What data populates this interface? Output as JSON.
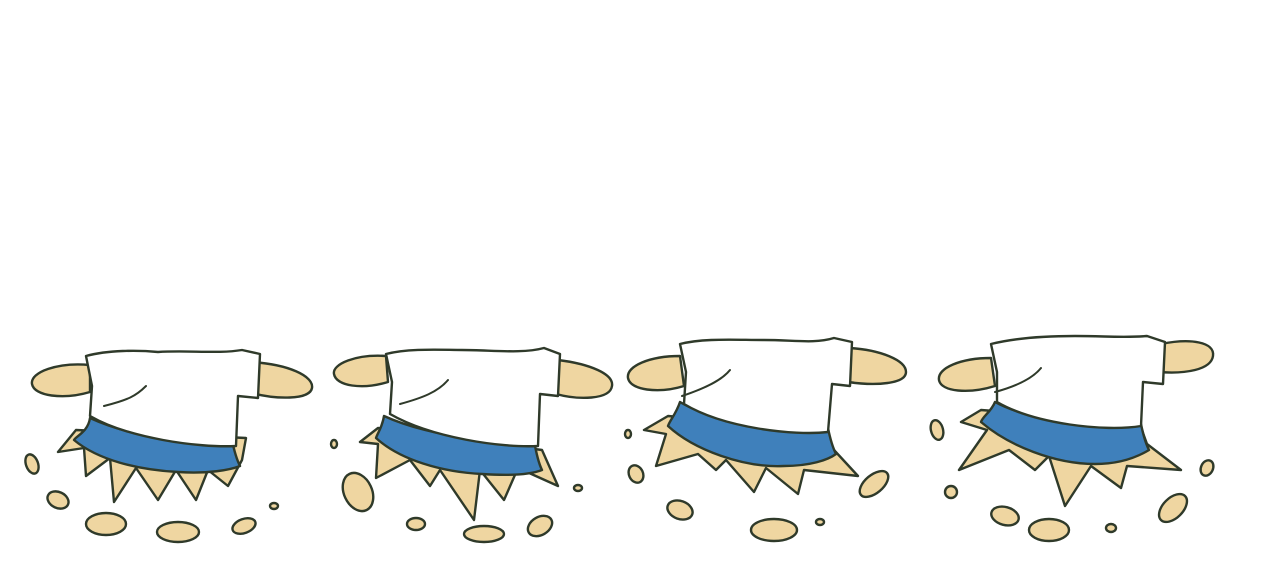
{
  "sprite_sheet": {
    "frames": [
      {
        "id": "frame-1",
        "name": "sprite-frame-1"
      },
      {
        "id": "frame-2",
        "name": "sprite-frame-2"
      },
      {
        "id": "frame-3",
        "name": "sprite-frame-3"
      },
      {
        "id": "frame-4",
        "name": "sprite-frame-4"
      }
    ],
    "colors": {
      "background": "#ffffff",
      "outline": "#2f3a2a",
      "skin": "#efd6a1",
      "shirt": "#ffffff",
      "skirt": "#3f80bb"
    }
  }
}
